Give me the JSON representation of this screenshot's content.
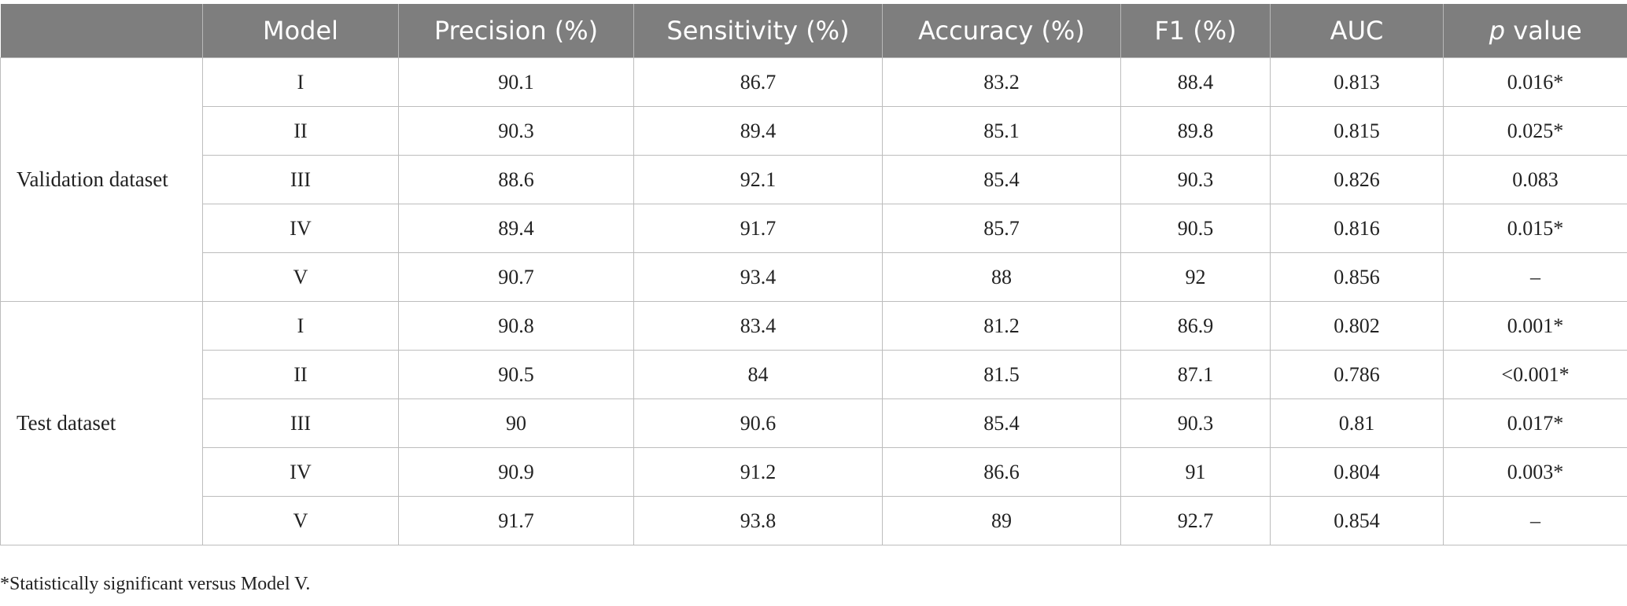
{
  "table": {
    "headers": {
      "group": "",
      "model": "Model",
      "precision": "Precision (%)",
      "sensitivity": "Sensitivity (%)",
      "accuracy": "Accuracy (%)",
      "f1": "F1 (%)",
      "auc": "AUC",
      "p_italic": "p",
      "p_rest": " value"
    },
    "groups": [
      {
        "label": "Validation dataset",
        "rows": [
          [
            "I",
            "90.1",
            "86.7",
            "83.2",
            "88.4",
            "0.813",
            "0.016*"
          ],
          [
            "II",
            "90.3",
            "89.4",
            "85.1",
            "89.8",
            "0.815",
            "0.025*"
          ],
          [
            "III",
            "88.6",
            "92.1",
            "85.4",
            "90.3",
            "0.826",
            "0.083"
          ],
          [
            "IV",
            "89.4",
            "91.7",
            "85.7",
            "90.5",
            "0.816",
            "0.015*"
          ],
          [
            "V",
            "90.7",
            "93.4",
            "88",
            "92",
            "0.856",
            "–"
          ]
        ]
      },
      {
        "label": "Test dataset",
        "rows": [
          [
            "I",
            "90.8",
            "83.4",
            "81.2",
            "86.9",
            "0.802",
            "0.001*"
          ],
          [
            "II",
            "90.5",
            "84",
            "81.5",
            "87.1",
            "0.786",
            "<0.001*"
          ],
          [
            "III",
            "90",
            "90.6",
            "85.4",
            "90.3",
            "0.81",
            "0.017*"
          ],
          [
            "IV",
            "90.9",
            "91.2",
            "86.6",
            "91",
            "0.804",
            "0.003*"
          ],
          [
            "V",
            "91.7",
            "93.8",
            "89",
            "92.7",
            "0.854",
            "–"
          ]
        ]
      }
    ]
  },
  "footnote": "*Statistically significant versus Model V."
}
